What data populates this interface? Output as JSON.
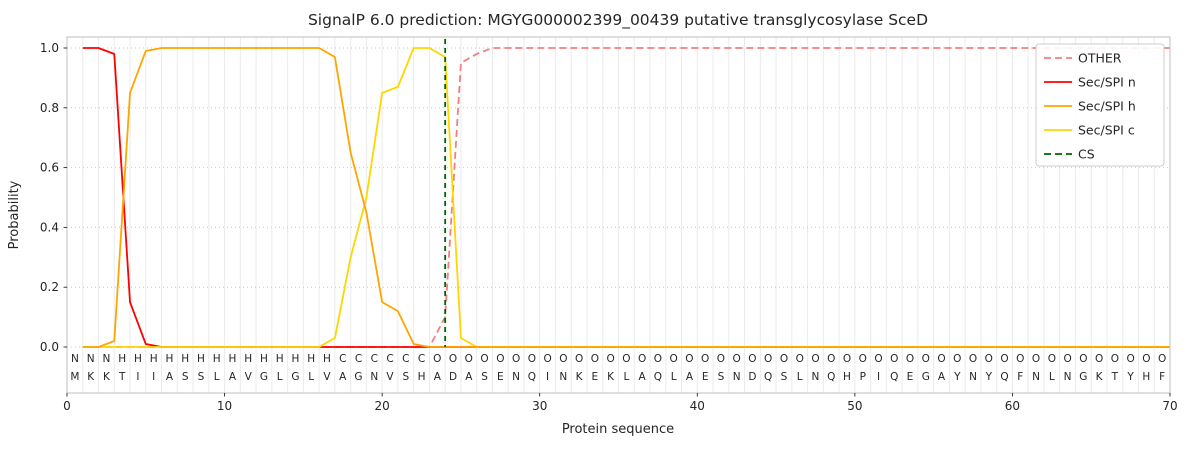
{
  "figure": {
    "title": "SignalP 6.0 prediction: MGYG000002399_00439 putative transglycosylase SceD",
    "xlabel": "Protein sequence",
    "ylabel": "Probability"
  },
  "legend": {
    "entries": [
      {
        "label": "OTHER",
        "color": "#f08080",
        "dash": true
      },
      {
        "label": "Sec/SPI n",
        "color": "#ff0000",
        "dash": false
      },
      {
        "label": "Sec/SPI h",
        "color": "#ffa500",
        "dash": false
      },
      {
        "label": "Sec/SPI c",
        "color": "#ffd700",
        "dash": false
      },
      {
        "label": "CS",
        "color": "#006400",
        "dash": true
      }
    ]
  },
  "chart_data": {
    "type": "line",
    "title": "SignalP 6.0 prediction: MGYG000002399_00439 putative transglycosylase SceD",
    "xlabel": "Protein sequence",
    "ylabel": "Probability",
    "xlim": [
      0,
      70
    ],
    "ylim": [
      0.0,
      1.0
    ],
    "x_ticks": [
      0,
      10,
      20,
      30,
      40,
      50,
      60,
      70
    ],
    "y_ticks": [
      0.0,
      0.2,
      0.4,
      0.6,
      0.8,
      1.0
    ],
    "x_start": 1,
    "x_step": 1,
    "grid": "vertical solid per residue, horizontal dotted at y ticks",
    "legend_position": "upper right",
    "series": [
      {
        "name": "OTHER",
        "color": "#f08080",
        "dash": true,
        "values": [
          0,
          0,
          0,
          0,
          0,
          0,
          0,
          0,
          0,
          0,
          0,
          0,
          0,
          0,
          0,
          0,
          0,
          0,
          0,
          0,
          0,
          0,
          0,
          0.1,
          0.95,
          0.98,
          1,
          1,
          1,
          1,
          1,
          1,
          1,
          1,
          1,
          1,
          1,
          1,
          1,
          1,
          1,
          1,
          1,
          1,
          1,
          1,
          1,
          1,
          1,
          1,
          1,
          1,
          1,
          1,
          1,
          1,
          1,
          1,
          1,
          1,
          1,
          1,
          1,
          1,
          1,
          1,
          1,
          1,
          1,
          1
        ]
      },
      {
        "name": "Sec/SPI n",
        "color": "#ff0000",
        "dash": false,
        "values": [
          1,
          1,
          0.98,
          0.15,
          0.01,
          0,
          0,
          0,
          0,
          0,
          0,
          0,
          0,
          0,
          0,
          0,
          0,
          0,
          0,
          0,
          0,
          0,
          0,
          0,
          0,
          0,
          0,
          0,
          0,
          0,
          0,
          0,
          0,
          0,
          0,
          0,
          0,
          0,
          0,
          0,
          0,
          0,
          0,
          0,
          0,
          0,
          0,
          0,
          0,
          0,
          0,
          0,
          0,
          0,
          0,
          0,
          0,
          0,
          0,
          0,
          0,
          0,
          0,
          0,
          0,
          0,
          0,
          0,
          0,
          0
        ]
      },
      {
        "name": "Sec/SPI c",
        "color": "#ffd700",
        "dash": false,
        "values": [
          0,
          0,
          0,
          0,
          0,
          0,
          0,
          0,
          0,
          0,
          0,
          0,
          0,
          0,
          0,
          0,
          0.03,
          0.3,
          0.5,
          0.85,
          0.87,
          1,
          1,
          0.97,
          0.03,
          0,
          0,
          0,
          0,
          0,
          0,
          0,
          0,
          0,
          0,
          0,
          0,
          0,
          0,
          0,
          0,
          0,
          0,
          0,
          0,
          0,
          0,
          0,
          0,
          0,
          0,
          0,
          0,
          0,
          0,
          0,
          0,
          0,
          0,
          0,
          0,
          0,
          0,
          0,
          0,
          0,
          0,
          0,
          0,
          0
        ]
      },
      {
        "name": "Sec/SPI h",
        "color": "#ffa500",
        "dash": false,
        "values": [
          0,
          0,
          0.02,
          0.85,
          0.99,
          1,
          1,
          1,
          1,
          1,
          1,
          1,
          1,
          1,
          1,
          1,
          0.97,
          0.65,
          0.45,
          0.15,
          0.12,
          0.01,
          0,
          0,
          0,
          0,
          0,
          0,
          0,
          0,
          0,
          0,
          0,
          0,
          0,
          0,
          0,
          0,
          0,
          0,
          0,
          0,
          0,
          0,
          0,
          0,
          0,
          0,
          0,
          0,
          0,
          0,
          0,
          0,
          0,
          0,
          0,
          0,
          0,
          0,
          0,
          0,
          0,
          0,
          0,
          0,
          0,
          0,
          0,
          0
        ]
      }
    ],
    "cs": {
      "name": "CS",
      "position": 24,
      "color": "#006400",
      "dash": true
    },
    "sequence": "MKKTIIASSLAVGLGLVAGNVSHADASENQINKEKLAQLAESNDQSLNQHPIQEGAYNYQFNLNGKTYHF",
    "region_labels": "NNNHHHHHHHHHHHHHHCCCCCCOOOOOOOOOOOOOOOOOOOOOOOOOOOOOOOOOOOOOOOOOOOOOOO",
    "region_colors": {
      "N": "#ff0000",
      "H": "#ffa500",
      "C": "#ffd700",
      "O": "#7f7f7f"
    }
  }
}
